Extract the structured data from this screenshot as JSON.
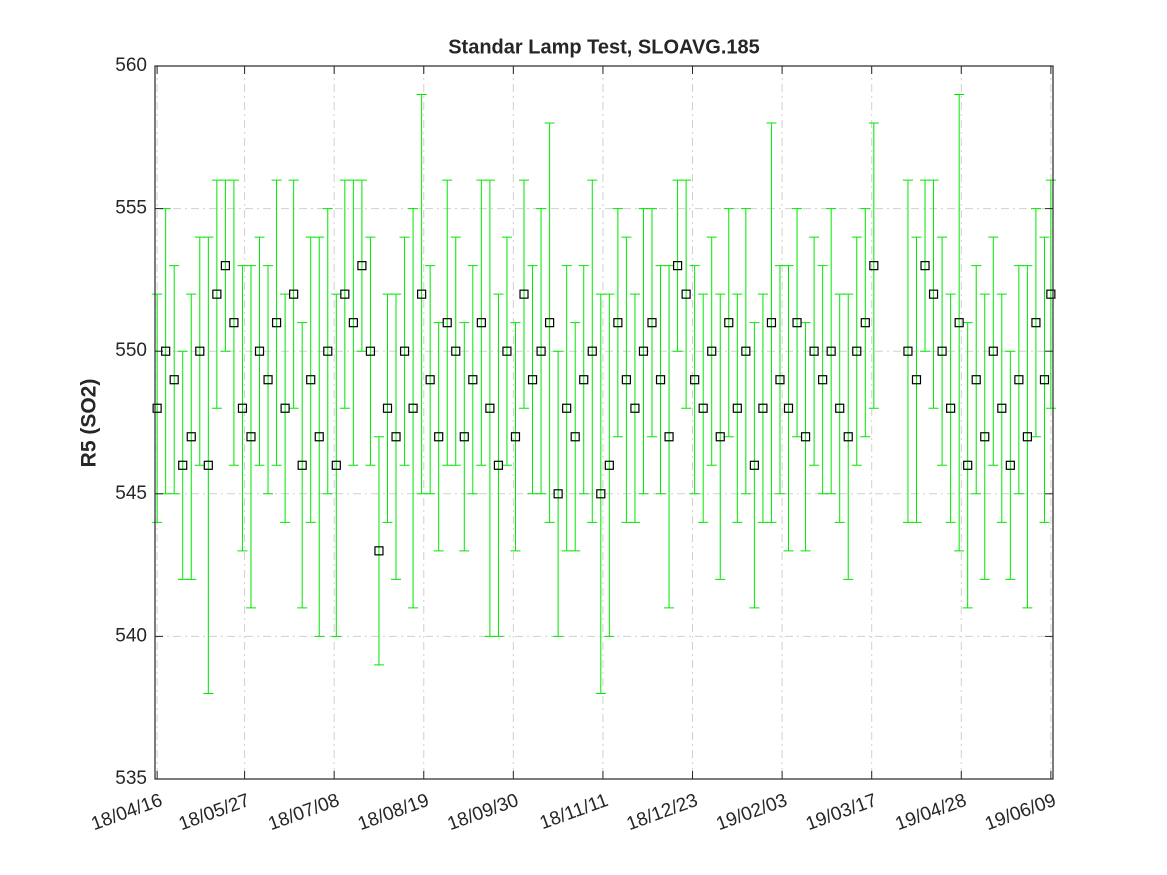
{
  "chart_data": {
    "type": "errorbar",
    "title": "Standar Lamp Test, SLOAVG.185",
    "ylabel": "R5 (SO2)",
    "x": [
      "18/04/16",
      "18/04/20",
      "18/04/24",
      "18/04/28",
      "18/05/02",
      "18/05/06",
      "18/05/10",
      "18/05/14",
      "18/05/18",
      "18/05/22",
      "18/05/26",
      "18/05/30",
      "18/06/03",
      "18/06/07",
      "18/06/11",
      "18/06/15",
      "18/06/19",
      "18/06/23",
      "18/06/27",
      "18/07/01",
      "18/07/05",
      "18/07/09",
      "18/07/13",
      "18/07/17",
      "18/07/21",
      "18/07/25",
      "18/07/29",
      "18/08/02",
      "18/08/06",
      "18/08/10",
      "18/08/14",
      "18/08/18",
      "18/08/22",
      "18/08/26",
      "18/08/30",
      "18/09/03",
      "18/09/07",
      "18/09/11",
      "18/09/15",
      "18/09/19",
      "18/09/23",
      "18/09/27",
      "18/10/01",
      "18/10/05",
      "18/10/09",
      "18/10/13",
      "18/10/17",
      "18/10/21",
      "18/10/25",
      "18/10/29",
      "18/11/02",
      "18/11/06",
      "18/11/10",
      "18/11/14",
      "18/11/18",
      "18/11/22",
      "18/11/26",
      "18/11/30",
      "18/12/04",
      "18/12/08",
      "18/12/12",
      "18/12/16",
      "18/12/20",
      "18/12/24",
      "18/12/28",
      "19/01/01",
      "19/01/05",
      "19/01/09",
      "19/01/13",
      "19/01/17",
      "19/01/21",
      "19/01/25",
      "19/01/29",
      "19/02/02",
      "19/02/06",
      "19/02/10",
      "19/02/14",
      "19/02/18",
      "19/02/22",
      "19/02/26",
      "19/03/02",
      "19/03/06",
      "19/03/10",
      "19/03/14",
      "19/03/18",
      "19/04/03",
      "19/04/07",
      "19/04/11",
      "19/04/15",
      "19/04/19",
      "19/04/23",
      "19/04/27",
      "19/05/01",
      "19/05/05",
      "19/05/09",
      "19/05/13",
      "19/05/17",
      "19/05/21",
      "19/05/25",
      "19/05/29",
      "19/06/02",
      "19/06/06",
      "19/06/09"
    ],
    "values": [
      548,
      550,
      549,
      546,
      547,
      550,
      546,
      552,
      553,
      551,
      548,
      547,
      550,
      549,
      551,
      548,
      552,
      546,
      549,
      547,
      550,
      546,
      552,
      551,
      553,
      550,
      543,
      548,
      547,
      550,
      548,
      552,
      549,
      547,
      551,
      550,
      547,
      549,
      551,
      548,
      546,
      550,
      547,
      552,
      549,
      550,
      551,
      545,
      548,
      547,
      549,
      550,
      545,
      546,
      551,
      549,
      548,
      550,
      551,
      549,
      547,
      553,
      552,
      549,
      548,
      550,
      547,
      551,
      548,
      550,
      546,
      548,
      551,
      549,
      548,
      551,
      547,
      550,
      549,
      550,
      548,
      547,
      550,
      551,
      553,
      550,
      549,
      553,
      552,
      550,
      548,
      551,
      546,
      549,
      547,
      550,
      548,
      546,
      549,
      547,
      551,
      549,
      552
    ],
    "errors": [
      4,
      5,
      4,
      4,
      5,
      4,
      8,
      4,
      3,
      5,
      5,
      6,
      4,
      4,
      5,
      4,
      4,
      5,
      5,
      7,
      5,
      6,
      4,
      5,
      3,
      4,
      4,
      4,
      5,
      4,
      7,
      7,
      4,
      4,
      5,
      4,
      4,
      4,
      5,
      8,
      6,
      4,
      4,
      4,
      4,
      5,
      7,
      5,
      5,
      4,
      4,
      6,
      7,
      6,
      4,
      5,
      4,
      5,
      4,
      4,
      6,
      3,
      4,
      4,
      4,
      4,
      5,
      4,
      4,
      5,
      5,
      4,
      7,
      4,
      5,
      4,
      4,
      4,
      4,
      5,
      4,
      5,
      4,
      4,
      5,
      6,
      5,
      3,
      4,
      4,
      4,
      8,
      5,
      4,
      5,
      4,
      4,
      4,
      4,
      6,
      4,
      5,
      4
    ],
    "color": "#00e600",
    "marker_color": "#000000",
    "xlim": [
      "18/04/15",
      "19/06/10"
    ],
    "xticks": [
      "18/04/16",
      "18/05/27",
      "18/07/08",
      "18/08/19",
      "18/09/30",
      "18/11/11",
      "18/12/23",
      "19/02/03",
      "19/03/17",
      "19/04/28",
      "19/06/09"
    ],
    "ylim": [
      535,
      560
    ],
    "yticks": [
      535,
      540,
      545,
      550,
      555,
      560
    ],
    "grid": true
  }
}
